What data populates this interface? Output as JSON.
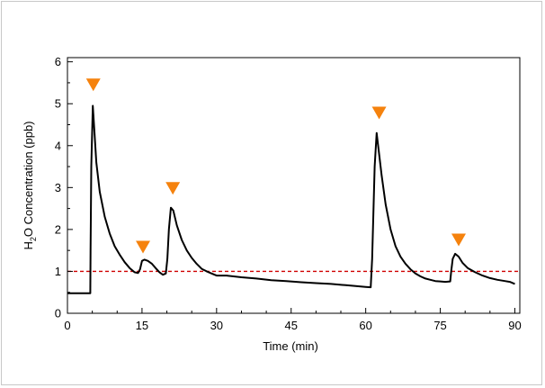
{
  "chart_data": {
    "type": "line",
    "xlabel": "Time (min)",
    "ylabel_parts": {
      "pre": "H",
      "sub": "2",
      "post": "O Concentration (ppb)"
    },
    "xlim": [
      0,
      91
    ],
    "ylim": [
      0,
      6.1
    ],
    "xticks": [
      0,
      15,
      30,
      45,
      60,
      75,
      90
    ],
    "yticks": [
      0,
      1,
      2,
      3,
      4,
      5,
      6
    ],
    "grid": false,
    "series": [
      {
        "color": "#000000",
        "x": [
          0,
          4.6,
          4.65,
          4.8,
          5.1,
          5.4,
          5.8,
          6.5,
          7.5,
          8.5,
          9.5,
          10.5,
          11.5,
          12.5,
          13.5,
          14.2,
          14.6,
          15.0,
          15.5,
          16.2,
          17.0,
          17.8,
          18.5,
          19.2,
          19.8,
          20.1,
          20.4,
          20.8,
          21.3,
          22.0,
          23.0,
          24.0,
          25.0,
          26.0,
          27.0,
          28.0,
          29.0,
          30.0,
          32.0,
          35.0,
          38.0,
          41.0,
          44.0,
          47.0,
          50.0,
          53.0,
          56.0,
          58.0,
          60.0,
          61.0,
          61.3,
          61.8,
          62.2,
          62.6,
          63.2,
          64.0,
          65.0,
          66.0,
          67.0,
          68.0,
          69.0,
          70.0,
          71.0,
          72.0,
          73.0,
          74.0,
          75.0,
          76.0,
          77.0,
          77.2,
          77.5,
          78.0,
          78.7,
          79.5,
          80.5,
          82.0,
          83.5,
          85.0,
          86.5,
          88.0,
          89.0,
          90.0
        ],
        "y": [
          0.48,
          0.48,
          1.5,
          3.5,
          4.95,
          4.4,
          3.6,
          2.9,
          2.3,
          1.9,
          1.6,
          1.4,
          1.22,
          1.08,
          0.98,
          0.96,
          1.05,
          1.25,
          1.28,
          1.25,
          1.18,
          1.07,
          0.98,
          0.92,
          0.95,
          1.3,
          2.0,
          2.52,
          2.45,
          2.1,
          1.75,
          1.5,
          1.32,
          1.18,
          1.06,
          1.0,
          0.95,
          0.9,
          0.9,
          0.86,
          0.83,
          0.79,
          0.77,
          0.74,
          0.72,
          0.7,
          0.67,
          0.65,
          0.63,
          0.62,
          1.3,
          3.5,
          4.3,
          3.9,
          3.3,
          2.6,
          2.0,
          1.6,
          1.35,
          1.18,
          1.05,
          0.95,
          0.88,
          0.83,
          0.8,
          0.77,
          0.76,
          0.75,
          0.76,
          1.0,
          1.3,
          1.42,
          1.35,
          1.2,
          1.08,
          0.98,
          0.9,
          0.84,
          0.8,
          0.77,
          0.75,
          0.7
        ]
      }
    ],
    "reference_line": {
      "y": 1,
      "color": "#d00000",
      "style": "dashed"
    },
    "markers": {
      "color": "#f5820d",
      "shape": "downward-triangle",
      "points": [
        {
          "x": 5.2,
          "y": 5.45
        },
        {
          "x": 15.2,
          "y": 1.58
        },
        {
          "x": 21.2,
          "y": 2.98
        },
        {
          "x": 62.7,
          "y": 4.78
        },
        {
          "x": 78.7,
          "y": 1.75
        }
      ]
    }
  }
}
